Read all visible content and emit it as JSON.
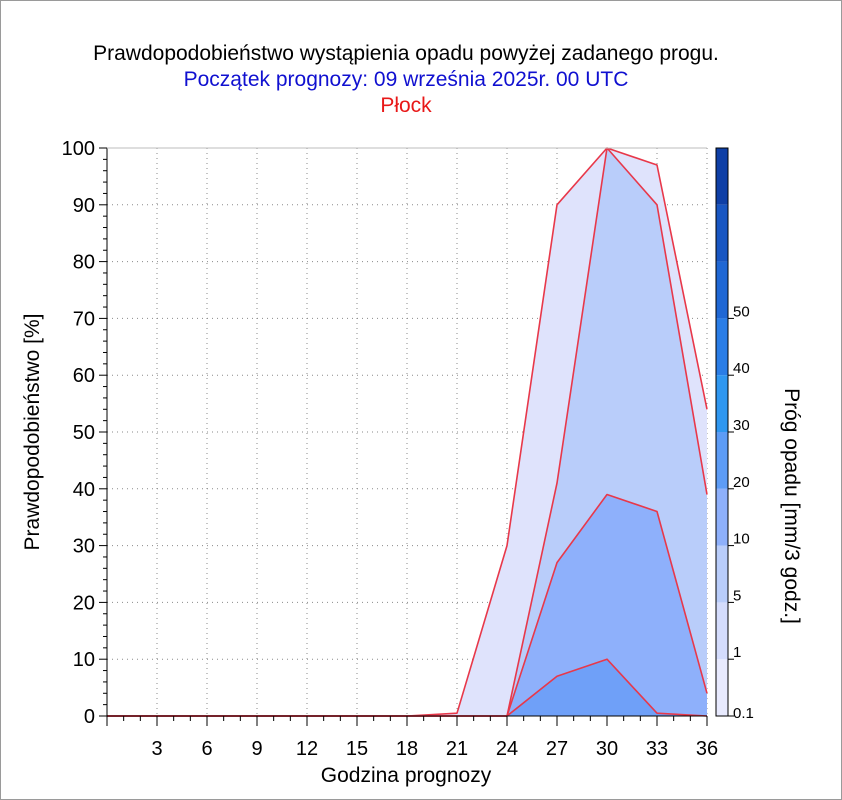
{
  "chart_data": {
    "type": "area",
    "title": "Prawdopodobieństwo wystąpienia opadu powyżej zadanego progu.",
    "subtitle": "Początek prognozy: 09 września 2025r. 00 UTC",
    "location": "Płock",
    "xlabel": "Godzina prognozy",
    "ylabel": "Prawdopodobieństwo [%]",
    "xlim": [
      0,
      36
    ],
    "ylim": [
      0,
      100
    ],
    "x_ticks": [
      3,
      6,
      9,
      12,
      15,
      18,
      21,
      24,
      27,
      30,
      33,
      36
    ],
    "y_ticks": [
      0,
      10,
      20,
      30,
      40,
      50,
      60,
      70,
      80,
      90,
      100
    ],
    "grid": true,
    "x": [
      0,
      3,
      6,
      9,
      12,
      15,
      18,
      21,
      24,
      27,
      30,
      33,
      36
    ],
    "series": [
      {
        "name": "0.1",
        "color": "#dfe3fc",
        "values": [
          0,
          0,
          0,
          0,
          0,
          0,
          0,
          0.5,
          30,
          90,
          100,
          97,
          54
        ]
      },
      {
        "name": "1",
        "color": "#b9cdfa",
        "values": [
          0,
          0,
          0,
          0,
          0,
          0,
          0,
          0,
          0,
          41,
          100,
          90,
          39
        ]
      },
      {
        "name": "5",
        "color": "#8eb0fb",
        "values": [
          0,
          0,
          0,
          0,
          0,
          0,
          0,
          0,
          0,
          27,
          39,
          36,
          4
        ]
      },
      {
        "name": "10",
        "color": "#6fa0f8",
        "values": [
          0,
          0,
          0,
          0,
          0,
          0,
          0,
          0,
          0,
          7,
          10,
          0.5,
          0
        ]
      }
    ],
    "line_color": "#e8384a",
    "colorbar": {
      "label": "Próg opadu [mm/3 godz.]",
      "tick_labels": [
        "0.1",
        "1",
        "5",
        "10",
        "20",
        "30",
        "40",
        "50"
      ],
      "colors": [
        "#e8eafe",
        "#d4dcfc",
        "#b9cdfa",
        "#8eb0fb",
        "#5d9cf6",
        "#2f97f0",
        "#2a7de6",
        "#1f67d4",
        "#1856c2",
        "#0e3fa6"
      ]
    }
  }
}
